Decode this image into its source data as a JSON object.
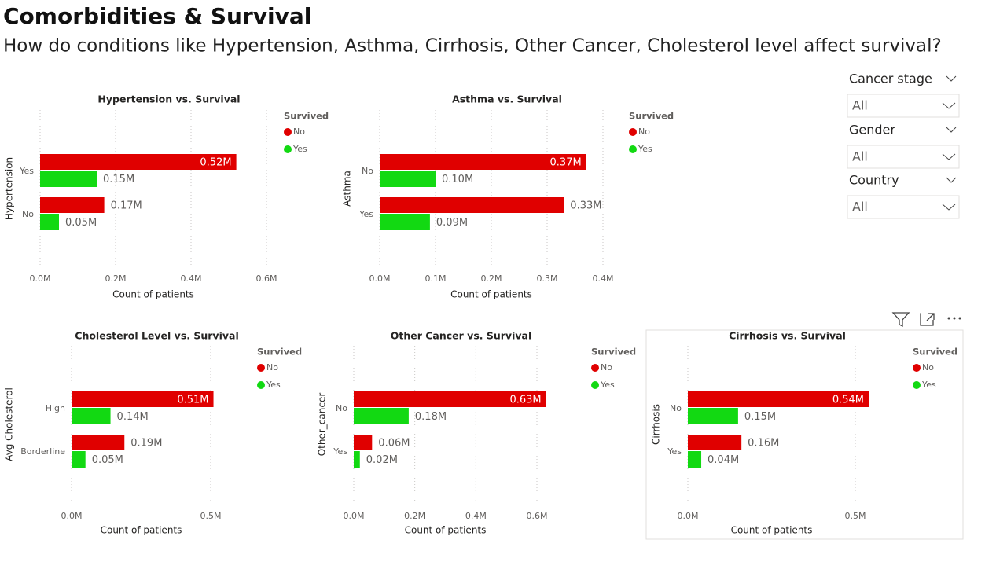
{
  "header": {
    "title": "Comorbidities & Survival",
    "subtitle": "How do conditions like Hypertension, Asthma, Cirrhosis, Other Cancer, Cholesterol level affect survival?"
  },
  "slicers": [
    {
      "label": "Cancer stage",
      "value": "All"
    },
    {
      "label": "Gender",
      "value": "All"
    },
    {
      "label": "Country",
      "value": "All"
    }
  ],
  "chart_data": [
    {
      "type": "bar",
      "orientation": "horizontal",
      "title": "Hypertension vs. Survival",
      "x_label": "Count of patients",
      "y_label": "Hypertension",
      "legend_title": "Survived",
      "categories": [
        "Yes",
        "No"
      ],
      "series": [
        {
          "name": "No",
          "color": "#e00000",
          "values": [
            520000,
            170000
          ],
          "value_labels": [
            "0.52M",
            "0.17M"
          ]
        },
        {
          "name": "Yes",
          "color": "#12d912",
          "values": [
            150000,
            50000
          ],
          "value_labels": [
            "0.15M",
            "0.05M"
          ]
        }
      ],
      "xlim": [
        0,
        600000
      ],
      "xticks": [
        {
          "value": 0,
          "label": "0.0M"
        },
        {
          "value": 200000,
          "label": "0.2M"
        },
        {
          "value": 400000,
          "label": "0.4M"
        },
        {
          "value": 600000,
          "label": "0.6M"
        }
      ],
      "grid": true
    },
    {
      "type": "bar",
      "orientation": "horizontal",
      "title": "Asthma vs. Survival",
      "x_label": "Count of patients",
      "y_label": "Asthma",
      "legend_title": "Survived",
      "categories": [
        "No",
        "Yes"
      ],
      "series": [
        {
          "name": "No",
          "color": "#e00000",
          "values": [
            370000,
            330000
          ],
          "value_labels": [
            "0.37M",
            "0.33M"
          ]
        },
        {
          "name": "Yes",
          "color": "#12d912",
          "values": [
            100000,
            90000
          ],
          "value_labels": [
            "0.10M",
            "0.09M"
          ]
        }
      ],
      "xlim": [
        0,
        400000
      ],
      "xticks": [
        {
          "value": 0,
          "label": "0.0M"
        },
        {
          "value": 100000,
          "label": "0.1M"
        },
        {
          "value": 200000,
          "label": "0.2M"
        },
        {
          "value": 300000,
          "label": "0.3M"
        },
        {
          "value": 400000,
          "label": "0.4M"
        }
      ],
      "grid": true
    },
    {
      "type": "bar",
      "orientation": "horizontal",
      "title": "Cholesterol Level vs. Survival",
      "x_label": "Count of patients",
      "y_label": "Avg Cholesterol",
      "legend_title": "Survived",
      "categories": [
        "High",
        "Borderline"
      ],
      "series": [
        {
          "name": "No",
          "color": "#e00000",
          "values": [
            510000,
            190000
          ],
          "value_labels": [
            "0.51M",
            "0.19M"
          ]
        },
        {
          "name": "Yes",
          "color": "#12d912",
          "values": [
            140000,
            50000
          ],
          "value_labels": [
            "0.14M",
            "0.05M"
          ]
        }
      ],
      "xlim": [
        0,
        500000
      ],
      "xticks": [
        {
          "value": 0,
          "label": "0.0M"
        },
        {
          "value": 500000,
          "label": "0.5M"
        }
      ],
      "grid": true
    },
    {
      "type": "bar",
      "orientation": "horizontal",
      "title": "Other Cancer vs. Survival",
      "x_label": "Count of patients",
      "y_label": "Other_cancer",
      "legend_title": "Survived",
      "categories": [
        "No",
        "Yes"
      ],
      "series": [
        {
          "name": "No",
          "color": "#e00000",
          "values": [
            630000,
            60000
          ],
          "value_labels": [
            "0.63M",
            "0.06M"
          ]
        },
        {
          "name": "Yes",
          "color": "#12d912",
          "values": [
            180000,
            20000
          ],
          "value_labels": [
            "0.18M",
            "0.02M"
          ]
        }
      ],
      "xlim": [
        0,
        600000
      ],
      "xticks": [
        {
          "value": 0,
          "label": "0.0M"
        },
        {
          "value": 200000,
          "label": "0.2M"
        },
        {
          "value": 400000,
          "label": "0.4M"
        },
        {
          "value": 600000,
          "label": "0.6M"
        }
      ],
      "grid": true
    },
    {
      "type": "bar",
      "orientation": "horizontal",
      "title": "Cirrhosis vs. Survival",
      "x_label": "Count of patients",
      "y_label": "Cirrhosis",
      "legend_title": "Survived",
      "categories": [
        "No",
        "Yes"
      ],
      "series": [
        {
          "name": "No",
          "color": "#e00000",
          "values": [
            540000,
            160000
          ],
          "value_labels": [
            "0.54M",
            "0.16M"
          ]
        },
        {
          "name": "Yes",
          "color": "#12d912",
          "values": [
            150000,
            40000
          ],
          "value_labels": [
            "0.15M",
            "0.04M"
          ]
        }
      ],
      "xlim": [
        0,
        500000
      ],
      "xticks": [
        {
          "value": 0,
          "label": "0.0M"
        },
        {
          "value": 500000,
          "label": "0.5M"
        }
      ],
      "grid": true
    }
  ]
}
